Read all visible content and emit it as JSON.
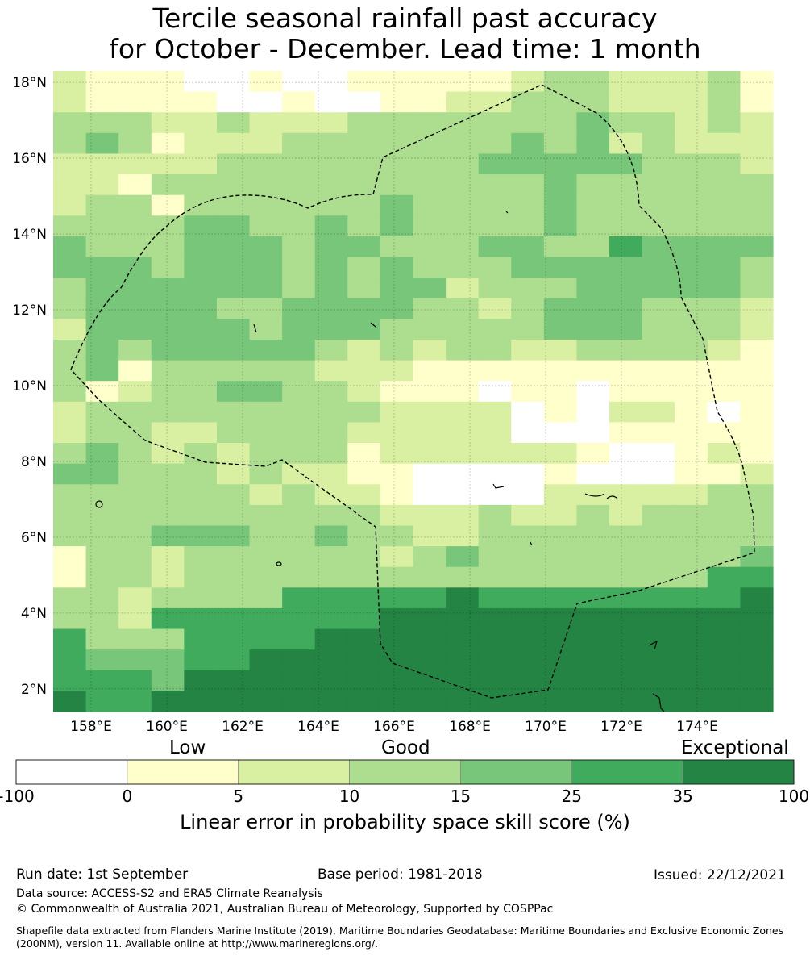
{
  "title": {
    "line1": "Tercile seasonal rainfall past accuracy",
    "line2": "for October - December. Lead time: 1 month"
  },
  "map": {
    "lon_range": [
      157,
      176
    ],
    "lat_range": [
      1.4,
      18.3
    ],
    "lon_ticks": [
      "158°E",
      "160°E",
      "162°E",
      "164°E",
      "166°E",
      "168°E",
      "170°E",
      "172°E",
      "174°E"
    ],
    "lat_ticks": [
      "18°N",
      "16°N",
      "14°N",
      "12°N",
      "10°N",
      "8°N",
      "6°N",
      "4°N",
      "2°N"
    ],
    "grid_lines": true,
    "boundary_style": "dashed",
    "cell_rows_north_to_south": [
      "2111001001111123322231",
      "2111100100112233322231",
      "3332232223333333433232",
      "3431222333333343423222",
      "2222233333333444443332",
      "2213333333333334333333",
      "2331333333433334333333",
      "3333443343433334333333",
      "4333444344333443354444",
      "4443444343433344444443",
      "3444444343442333444443",
      "3444433444433234443332",
      "2444443444333334443332",
      "3434444432323322333321",
      "3413333322211111111111",
      "3123344332111011011111",
      "2333333333222201022101",
      "2332233332222200011111",
      "3432323331222222100121",
      "4433323221100001000112",
      "3333332322100002222233",
      "3333333333222322323333",
      "3334443343322333333333",
      "1332333333234333333334",
      "1332333333333333333355",
      "3323333555556555555556",
      "3325555555666666666666",
      "5333555566666666666666",
      "5444556666666666666666",
      "5554666666666666666666",
      "6556666666666666666666"
    ]
  },
  "colorbar": {
    "category_labels": [
      "Low",
      "Good",
      "Exceptional"
    ],
    "ticks": [
      "-100",
      "0",
      "5",
      "10",
      "15",
      "25",
      "35",
      "100"
    ],
    "colors": [
      "#ffffff",
      "#ffffcc",
      "#d9f0a3",
      "#addd8e",
      "#78c679",
      "#41ab5d",
      "#238443"
    ],
    "xlabel": "Linear error in probability space skill score (%)"
  },
  "footer": {
    "run_date": "Run date: 1st September",
    "base_period": "Base period: 1981-2018",
    "issued": "Issued: 22/12/2021",
    "data_source": "Data source: ACCESS-S2 and ERA5 Climate Reanalysis",
    "copyright": "© Commonwealth of Australia 2021, Australian Bureau of Meteorology, Supported by COSPPac",
    "shapefile": "Shapefile data extracted from Flanders Marine Institute (2019), Maritime Boundaries Geodatabase: Maritime Boundaries and Exclusive Economic Zones (200NM), version 11. Available online at http://www.marineregions.org/."
  }
}
